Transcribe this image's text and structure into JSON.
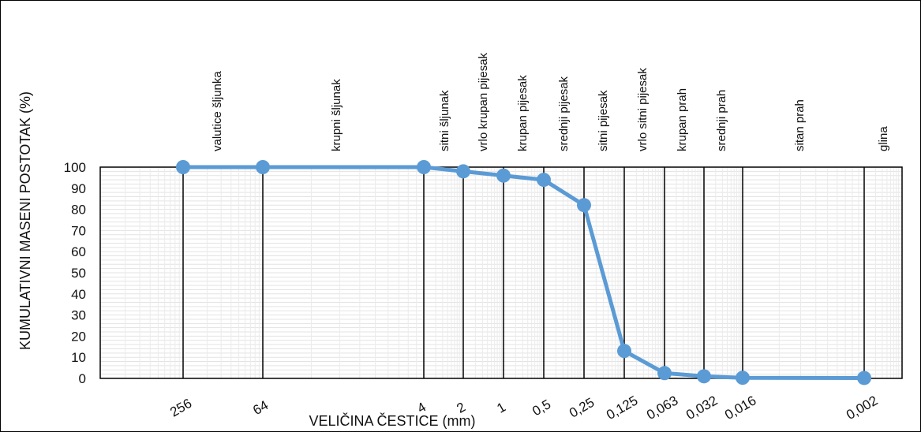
{
  "chart_data": {
    "type": "line",
    "title": "",
    "xlabel": "VELIČINA ČESTICE (mm)",
    "ylabel": "KUMULATIVNI MASENI POSTOTAK (%)",
    "ylim": [
      0,
      100
    ],
    "y_ticks": [
      "0",
      "10",
      "20",
      "30",
      "40",
      "50",
      "60",
      "70",
      "80",
      "90",
      "100"
    ],
    "x_log_scale": true,
    "x_reversed": true,
    "grid": true,
    "series_color": "#5b9bd5",
    "points": [
      {
        "x_label": "256",
        "x": 256,
        "y": 100
      },
      {
        "x_label": "64",
        "x": 64,
        "y": 100
      },
      {
        "x_label": "4",
        "x": 4,
        "y": 100
      },
      {
        "x_label": "2",
        "x": 2,
        "y": 98
      },
      {
        "x_label": "1",
        "x": 1,
        "y": 96
      },
      {
        "x_label": "0,5",
        "x": 0.5,
        "y": 94
      },
      {
        "x_label": "0,25",
        "x": 0.25,
        "y": 82
      },
      {
        "x_label": "0,125",
        "x": 0.125,
        "y": 13
      },
      {
        "x_label": "0,063",
        "x": 0.063,
        "y": 2.5
      },
      {
        "x_label": "0,032",
        "x": 0.032,
        "y": 1
      },
      {
        "x_label": "0,016",
        "x": 0.016,
        "y": 0.3
      },
      {
        "x_label": "0,002",
        "x": 0.002,
        "y": 0.2
      }
    ],
    "fraction_labels": [
      "valutice šljunka",
      "krupni šljunak",
      "sitni šljunak",
      "vrlo krupan pijesak",
      "krupan pijesak",
      "srednji pijesak",
      "sitni pijesak",
      "vrlo sitni pijesak",
      "krupan prah",
      "srednji prah",
      "sitan prah",
      "glina"
    ]
  }
}
